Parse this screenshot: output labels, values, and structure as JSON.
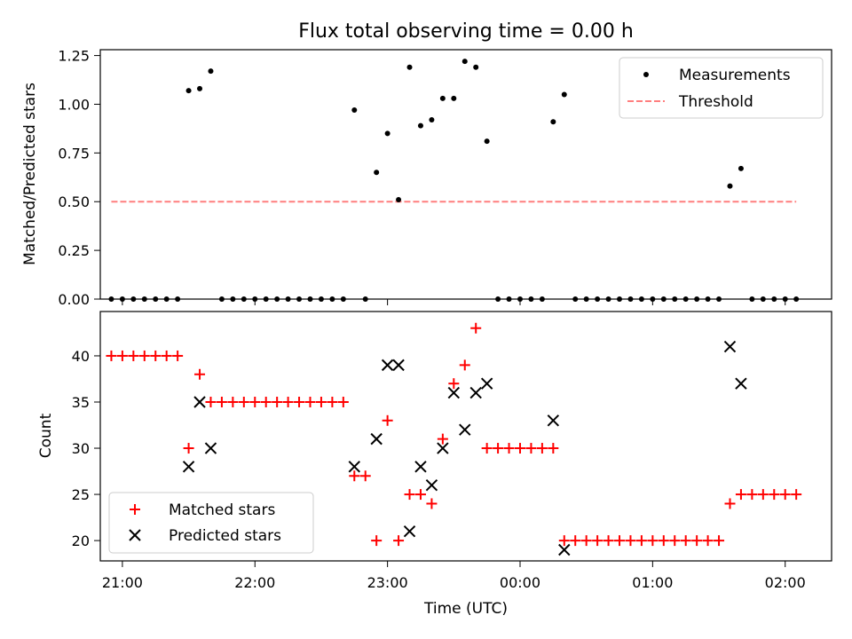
{
  "chart_data": [
    {
      "type": "scatter",
      "title": "Flux total observing time = 0.00 h",
      "xlabel": "",
      "ylabel": "Matched/Predicted stars",
      "x_unit": "time (UTC)",
      "xlim": [
        "20:50",
        "02:21"
      ],
      "ylim": [
        0,
        1.28
      ],
      "yticks": [
        "0.00",
        "0.25",
        "0.50",
        "0.75",
        "1.00",
        "1.25"
      ],
      "grid": false,
      "legend_position": "top-right",
      "legend": [
        {
          "label": "Measurements",
          "marker": "dot",
          "color": "#000000"
        },
        {
          "label": "Threshold",
          "marker": "dashed-line",
          "color": "#ff7f7f"
        }
      ],
      "threshold": {
        "value": 0.5,
        "x_start": "20:55",
        "x_end": "02:05",
        "color": "#ff7f7f"
      },
      "series": [
        {
          "name": "Measurements",
          "color": "#000000",
          "points": [
            [
              "20:55",
              0
            ],
            [
              "21:00",
              0
            ],
            [
              "21:05",
              0
            ],
            [
              "21:10",
              0
            ],
            [
              "21:15",
              0
            ],
            [
              "21:20",
              0
            ],
            [
              "21:25",
              0
            ],
            [
              "21:30",
              1.07
            ],
            [
              "21:35",
              1.08
            ],
            [
              "21:40",
              1.17
            ],
            [
              "21:45",
              0
            ],
            [
              "21:50",
              0
            ],
            [
              "21:55",
              0
            ],
            [
              "22:00",
              0
            ],
            [
              "22:05",
              0
            ],
            [
              "22:10",
              0
            ],
            [
              "22:15",
              0
            ],
            [
              "22:20",
              0
            ],
            [
              "22:25",
              0
            ],
            [
              "22:30",
              0
            ],
            [
              "22:35",
              0
            ],
            [
              "22:40",
              0
            ],
            [
              "22:45",
              0.97
            ],
            [
              "22:50",
              0
            ],
            [
              "22:55",
              0.65
            ],
            [
              "23:00",
              0.85
            ],
            [
              "23:05",
              0.51
            ],
            [
              "23:10",
              1.19
            ],
            [
              "23:15",
              0.89
            ],
            [
              "23:20",
              0.92
            ],
            [
              "23:25",
              1.03
            ],
            [
              "23:30",
              1.03
            ],
            [
              "23:35",
              1.22
            ],
            [
              "23:40",
              1.19
            ],
            [
              "23:45",
              0.81
            ],
            [
              "23:50",
              0
            ],
            [
              "23:55",
              0
            ],
            [
              "00:00",
              0
            ],
            [
              "00:05",
              0
            ],
            [
              "00:10",
              0
            ],
            [
              "00:15",
              0.91
            ],
            [
              "00:20",
              1.05
            ],
            [
              "00:25",
              0
            ],
            [
              "00:30",
              0
            ],
            [
              "00:35",
              0
            ],
            [
              "00:40",
              0
            ],
            [
              "00:45",
              0
            ],
            [
              "00:50",
              0
            ],
            [
              "00:55",
              0
            ],
            [
              "01:00",
              0
            ],
            [
              "01:05",
              0
            ],
            [
              "01:10",
              0
            ],
            [
              "01:15",
              0
            ],
            [
              "01:20",
              0
            ],
            [
              "01:25",
              0
            ],
            [
              "01:30",
              0
            ],
            [
              "01:35",
              0.58
            ],
            [
              "01:40",
              0.67
            ],
            [
              "01:45",
              0
            ],
            [
              "01:50",
              0
            ],
            [
              "01:55",
              0
            ],
            [
              "02:00",
              0
            ],
            [
              "02:05",
              0
            ]
          ]
        }
      ]
    },
    {
      "type": "scatter",
      "title": "",
      "xlabel": "Time (UTC)",
      "ylabel": "Count",
      "xlim": [
        "20:50",
        "02:21"
      ],
      "ylim": [
        17.8,
        44.8
      ],
      "xticks": [
        "21:00",
        "22:00",
        "23:00",
        "00:00",
        "01:00",
        "02:00"
      ],
      "yticks": [
        "20",
        "25",
        "30",
        "35",
        "40"
      ],
      "grid": false,
      "legend_position": "bottom-left",
      "legend": [
        {
          "label": "Matched stars",
          "marker": "plus",
          "color": "#ff0000"
        },
        {
          "label": "Predicted stars",
          "marker": "x",
          "color": "#000000"
        }
      ],
      "series": [
        {
          "name": "Matched stars",
          "marker": "plus",
          "color": "#ff0000",
          "points": [
            [
              "20:55",
              40
            ],
            [
              "21:00",
              40
            ],
            [
              "21:05",
              40
            ],
            [
              "21:10",
              40
            ],
            [
              "21:15",
              40
            ],
            [
              "21:20",
              40
            ],
            [
              "21:25",
              40
            ],
            [
              "21:30",
              30
            ],
            [
              "21:35",
              38
            ],
            [
              "21:40",
              35
            ],
            [
              "21:45",
              35
            ],
            [
              "21:50",
              35
            ],
            [
              "21:55",
              35
            ],
            [
              "22:00",
              35
            ],
            [
              "22:05",
              35
            ],
            [
              "22:10",
              35
            ],
            [
              "22:15",
              35
            ],
            [
              "22:20",
              35
            ],
            [
              "22:25",
              35
            ],
            [
              "22:30",
              35
            ],
            [
              "22:35",
              35
            ],
            [
              "22:40",
              35
            ],
            [
              "22:45",
              27
            ],
            [
              "22:50",
              27
            ],
            [
              "22:55",
              20
            ],
            [
              "23:00",
              33
            ],
            [
              "23:05",
              20
            ],
            [
              "23:10",
              25
            ],
            [
              "23:15",
              25
            ],
            [
              "23:20",
              24
            ],
            [
              "23:25",
              31
            ],
            [
              "23:30",
              37
            ],
            [
              "23:35",
              39
            ],
            [
              "23:40",
              43
            ],
            [
              "23:45",
              30
            ],
            [
              "23:50",
              30
            ],
            [
              "23:55",
              30
            ],
            [
              "00:00",
              30
            ],
            [
              "00:05",
              30
            ],
            [
              "00:10",
              30
            ],
            [
              "00:15",
              30
            ],
            [
              "00:20",
              20
            ],
            [
              "00:25",
              20
            ],
            [
              "00:30",
              20
            ],
            [
              "00:35",
              20
            ],
            [
              "00:40",
              20
            ],
            [
              "00:45",
              20
            ],
            [
              "00:50",
              20
            ],
            [
              "00:55",
              20
            ],
            [
              "01:00",
              20
            ],
            [
              "01:05",
              20
            ],
            [
              "01:10",
              20
            ],
            [
              "01:15",
              20
            ],
            [
              "01:20",
              20
            ],
            [
              "01:25",
              20
            ],
            [
              "01:30",
              20
            ],
            [
              "01:35",
              24
            ],
            [
              "01:40",
              25
            ],
            [
              "01:45",
              25
            ],
            [
              "01:50",
              25
            ],
            [
              "01:55",
              25
            ],
            [
              "02:00",
              25
            ],
            [
              "02:05",
              25
            ]
          ]
        },
        {
          "name": "Predicted stars",
          "marker": "x",
          "color": "#000000",
          "points": [
            [
              "21:30",
              28
            ],
            [
              "21:35",
              35
            ],
            [
              "21:40",
              30
            ],
            [
              "22:45",
              28
            ],
            [
              "22:55",
              31
            ],
            [
              "23:00",
              39
            ],
            [
              "23:05",
              39
            ],
            [
              "23:10",
              21
            ],
            [
              "23:15",
              28
            ],
            [
              "23:20",
              26
            ],
            [
              "23:25",
              30
            ],
            [
              "23:30",
              36
            ],
            [
              "23:35",
              32
            ],
            [
              "23:40",
              36
            ],
            [
              "23:45",
              37
            ],
            [
              "00:15",
              33
            ],
            [
              "00:20",
              19
            ],
            [
              "01:35",
              41
            ],
            [
              "01:40",
              37
            ]
          ]
        }
      ]
    }
  ]
}
